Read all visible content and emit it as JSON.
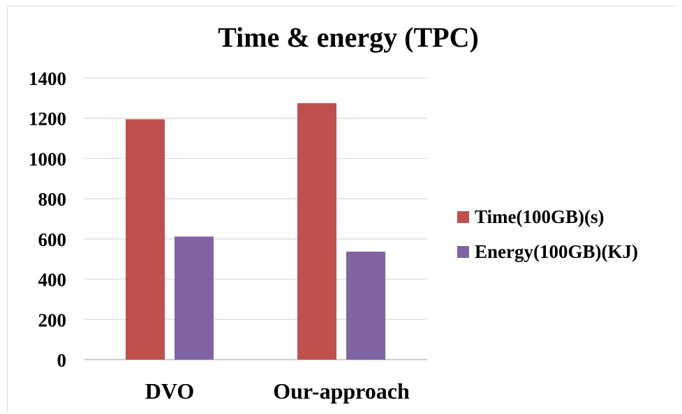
{
  "chart_data": {
    "type": "bar",
    "title": "Time & energy (TPC)",
    "xlabel": "",
    "ylabel": "",
    "categories": [
      "DVO",
      "Our-approach"
    ],
    "series": [
      {
        "name": "Time(100GB)(s)",
        "values": [
          1195,
          1275
        ],
        "color": "#c0504d"
      },
      {
        "name": "Energy(100GB)(KJ)",
        "values": [
          612,
          537
        ],
        "color": "#8064a2"
      }
    ],
    "ylim": [
      0,
      1400
    ],
    "yticks": [
      0,
      200,
      400,
      600,
      800,
      1000,
      1200,
      1400
    ],
    "grid": true,
    "legend_position": "right"
  }
}
